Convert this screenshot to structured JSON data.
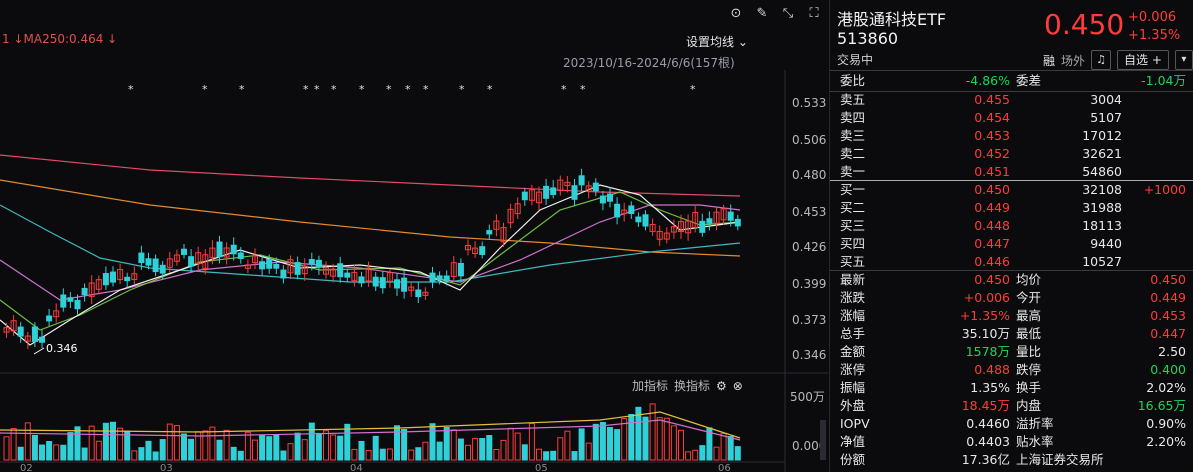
{
  "chart": {
    "ma_label": "1 ↓MA250:0.464 ↓",
    "set_ma_label": "设置均线 ⌄",
    "range_label": "2023/10/16-2024/6/6(157根)",
    "y_ticks": [
      "0.533",
      "0.506",
      "0.480",
      "0.453",
      "0.426",
      "0.399",
      "0.373",
      "0.346"
    ],
    "low_marker": "0.346",
    "vol_ticks": [
      "500万",
      "0.000"
    ],
    "x_ticks": [
      "02",
      "03",
      "04",
      "05",
      "06"
    ],
    "indicator_add": "加指标",
    "indicator_switch": "换指标",
    "colors": {
      "up": "#ff3b3b",
      "down": "#30d0d8",
      "bg": "#0b0b0d"
    }
  },
  "chart_data": {
    "type": "candlestick",
    "y_range": [
      0.335,
      0.545
    ],
    "ma_lines": [
      "MA5",
      "MA10",
      "MA20",
      "MA60",
      "MA120",
      "MA250"
    ],
    "ma250_value": 0.464,
    "low_value": 0.346,
    "range": "2023/10/16-2024/6/6(157根)"
  },
  "icons": [
    "chevron-down-circle-icon",
    "pen-icon",
    "pin-icon",
    "expand-icon"
  ],
  "quote": {
    "name": "港股通科技ETF",
    "code": "513860",
    "status": "交易中",
    "price": "0.450",
    "change": "+0.006",
    "change_pct": "+1.35%",
    "rong": "融",
    "outside": "场外",
    "bell": "🔔",
    "zixuan": "自选 +",
    "zixuan_arrow": "▾"
  },
  "order_book": {
    "weibi_label": "委比",
    "weibi": "-4.86%",
    "weicha_label": "委差",
    "weicha": "-1.04万",
    "sells": [
      {
        "label": "卖五",
        "price": "0.455",
        "vol": "3004"
      },
      {
        "label": "卖四",
        "price": "0.454",
        "vol": "5107"
      },
      {
        "label": "卖三",
        "price": "0.453",
        "vol": "17012"
      },
      {
        "label": "卖二",
        "price": "0.452",
        "vol": "32621"
      },
      {
        "label": "卖一",
        "price": "0.451",
        "vol": "54860"
      }
    ],
    "buys": [
      {
        "label": "买一",
        "price": "0.450",
        "vol": "32108",
        "delta": "+1000"
      },
      {
        "label": "买二",
        "price": "0.449",
        "vol": "31988",
        "delta": ""
      },
      {
        "label": "买三",
        "price": "0.448",
        "vol": "18113",
        "delta": ""
      },
      {
        "label": "买四",
        "price": "0.447",
        "vol": "9440",
        "delta": ""
      },
      {
        "label": "买五",
        "price": "0.446",
        "vol": "10527",
        "delta": ""
      }
    ]
  },
  "stats": [
    {
      "l1": "最新",
      "v1": "0.450",
      "c1": "red",
      "l2": "均价",
      "v2": "0.450",
      "c2": "red"
    },
    {
      "l1": "涨跌",
      "v1": "+0.006",
      "c1": "red",
      "l2": "今开",
      "v2": "0.449",
      "c2": "red"
    },
    {
      "l1": "涨幅",
      "v1": "+1.35%",
      "c1": "red",
      "l2": "最高",
      "v2": "0.453",
      "c2": "red"
    },
    {
      "l1": "总手",
      "v1": "35.10万",
      "c1": "white",
      "l2": "最低",
      "v2": "0.447",
      "c2": "red"
    },
    {
      "l1": "金额",
      "v1": "1578万",
      "c1": "green",
      "l2": "量比",
      "v2": "2.50",
      "c2": "white"
    },
    {
      "l1": "涨停",
      "v1": "0.488",
      "c1": "red",
      "l2": "跌停",
      "v2": "0.400",
      "c2": "green"
    },
    {
      "l1": "振幅",
      "v1": "1.35%",
      "c1": "white",
      "l2": "换手",
      "v2": "2.02%",
      "c2": "white"
    },
    {
      "l1": "外盘",
      "v1": "18.45万",
      "c1": "red",
      "l2": "内盘",
      "v2": "16.65万",
      "c2": "green"
    },
    {
      "l1": "IOPV",
      "v1": "0.4460",
      "c1": "white",
      "l2": "溢折率",
      "v2": "0.90%",
      "c2": "white"
    },
    {
      "l1": "净值",
      "v1": "0.4403",
      "c1": "white",
      "l2": "贴水率",
      "v2": "2.20%",
      "c2": "white"
    },
    {
      "l1": "份额",
      "v1": "17.36亿",
      "c1": "white",
      "l2": "上海证券交易所",
      "v2": "",
      "c2": "white"
    }
  ]
}
